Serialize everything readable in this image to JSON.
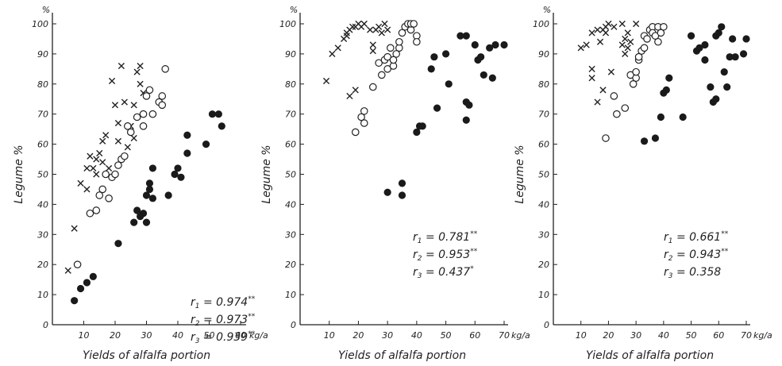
{
  "chart_data": [
    {
      "type": "scatter",
      "title": "",
      "xlabel": "Yields of alfalfa portion",
      "ylabel": "Legume %",
      "y_unit": "%",
      "x_unit": "kg/a",
      "xlim": [
        0,
        60
      ],
      "ylim": [
        0,
        100
      ],
      "x_ticks": [
        10,
        20,
        30,
        40,
        50,
        60
      ],
      "x_tick_labels": [
        "10",
        "20",
        "30",
        "40",
        "50",
        "60"
      ],
      "y_ticks": [
        0,
        10,
        20,
        30,
        40,
        50,
        60,
        70,
        80,
        90,
        100
      ],
      "y_tick_labels": [
        "0",
        "10",
        "20",
        "30",
        "40",
        "50",
        "60",
        "70",
        "80",
        "90",
        "100"
      ],
      "grid": false,
      "correlations": [
        {
          "symbol": "r",
          "sub": "1",
          "value": "0.974",
          "stars": "**"
        },
        {
          "symbol": "r",
          "sub": "2",
          "value": "0.973",
          "stars": "**"
        },
        {
          "symbol": "r",
          "sub": "3",
          "value": "0.939",
          "stars": "**"
        }
      ],
      "series": [
        {
          "marker": "cross",
          "points": [
            [
              5,
              18
            ],
            [
              7,
              32
            ],
            [
              9,
              47
            ],
            [
              11,
              45
            ],
            [
              11,
              52
            ],
            [
              12,
              56
            ],
            [
              13,
              52
            ],
            [
              14,
              50
            ],
            [
              14,
              55
            ],
            [
              15,
              57
            ],
            [
              16,
              54
            ],
            [
              16,
              61
            ],
            [
              17,
              63
            ],
            [
              18,
              52
            ],
            [
              19,
              81
            ],
            [
              20,
              73
            ],
            [
              21,
              61
            ],
            [
              21,
              67
            ],
            [
              22,
              86
            ],
            [
              23,
              74
            ],
            [
              24,
              59
            ],
            [
              25,
              66
            ],
            [
              26,
              62
            ],
            [
              26,
              73
            ],
            [
              27,
              84
            ],
            [
              28,
              86
            ],
            [
              28,
              80
            ],
            [
              29,
              77
            ]
          ]
        },
        {
          "marker": "circle",
          "points": [
            [
              8,
              20
            ],
            [
              12,
              37
            ],
            [
              14,
              38
            ],
            [
              15,
              43
            ],
            [
              16,
              45
            ],
            [
              17,
              50
            ],
            [
              18,
              42
            ],
            [
              19,
              49
            ],
            [
              20,
              50
            ],
            [
              21,
              53
            ],
            [
              22,
              55
            ],
            [
              23,
              56
            ],
            [
              24,
              66
            ],
            [
              25,
              64
            ],
            [
              27,
              69
            ],
            [
              29,
              66
            ],
            [
              29,
              70
            ],
            [
              30,
              76
            ],
            [
              31,
              78
            ],
            [
              32,
              70
            ],
            [
              34,
              74
            ],
            [
              35,
              76
            ],
            [
              35,
              73
            ],
            [
              36,
              85
            ]
          ]
        },
        {
          "marker": "filled",
          "points": [
            [
              7,
              8
            ],
            [
              9,
              12
            ],
            [
              11,
              14
            ],
            [
              13,
              16
            ],
            [
              21,
              27
            ],
            [
              26,
              34
            ],
            [
              27,
              38
            ],
            [
              28,
              36
            ],
            [
              29,
              37
            ],
            [
              30,
              34
            ],
            [
              30,
              43
            ],
            [
              31,
              45
            ],
            [
              31,
              47
            ],
            [
              32,
              52
            ],
            [
              32,
              42
            ],
            [
              37,
              43
            ],
            [
              39,
              50
            ],
            [
              40,
              52
            ],
            [
              41,
              49
            ],
            [
              43,
              57
            ],
            [
              43,
              63
            ],
            [
              49,
              60
            ],
            [
              51,
              70
            ],
            [
              53,
              70
            ],
            [
              54,
              66
            ]
          ]
        }
      ]
    },
    {
      "type": "scatter",
      "title": "",
      "xlabel": "Yields of alfalfa portion",
      "ylabel": "Legume %",
      "y_unit": "%",
      "x_unit": "kg/a",
      "xlim": [
        0,
        70
      ],
      "ylim": [
        0,
        100
      ],
      "x_ticks": [
        10,
        20,
        30,
        40,
        50,
        60,
        70
      ],
      "x_tick_labels": [
        "10",
        "20",
        "30",
        "40",
        "50",
        "60",
        "70"
      ],
      "y_ticks": [
        0,
        10,
        20,
        30,
        40,
        50,
        60,
        70,
        80,
        90,
        100
      ],
      "y_tick_labels": [
        "0",
        "10",
        "20",
        "30",
        "40",
        "50",
        "60",
        "70",
        "80",
        "90",
        "100"
      ],
      "grid": false,
      "correlations": [
        {
          "symbol": "r",
          "sub": "1",
          "value": "0.781",
          "stars": "**"
        },
        {
          "symbol": "r",
          "sub": "2",
          "value": "0.953",
          "stars": "**"
        },
        {
          "symbol": "r",
          "sub": "3",
          "value": "0.437",
          "stars": "*"
        }
      ],
      "series": [
        {
          "marker": "cross",
          "points": [
            [
              9,
              81
            ],
            [
              11,
              90
            ],
            [
              13,
              92
            ],
            [
              15,
              95
            ],
            [
              16,
              97
            ],
            [
              16,
              96
            ],
            [
              17,
              98
            ],
            [
              17,
              76
            ],
            [
              18,
              99
            ],
            [
              19,
              99
            ],
            [
              19,
              78
            ],
            [
              20,
              100
            ],
            [
              21,
              99
            ],
            [
              22,
              100
            ],
            [
              24,
              98
            ],
            [
              25,
              93
            ],
            [
              25,
              91
            ],
            [
              26,
              98
            ],
            [
              27,
              99
            ],
            [
              28,
              97
            ],
            [
              29,
              100
            ],
            [
              30,
              98
            ]
          ]
        },
        {
          "marker": "circle",
          "points": [
            [
              19,
              64
            ],
            [
              21,
              69
            ],
            [
              22,
              67
            ],
            [
              22,
              71
            ],
            [
              25,
              79
            ],
            [
              27,
              87
            ],
            [
              28,
              83
            ],
            [
              29,
              88
            ],
            [
              30,
              89
            ],
            [
              30,
              85
            ],
            [
              31,
              92
            ],
            [
              32,
              86
            ],
            [
              32,
              88
            ],
            [
              33,
              90
            ],
            [
              34,
              92
            ],
            [
              35,
              97
            ],
            [
              36,
              99
            ],
            [
              37,
              100
            ],
            [
              38,
              98
            ],
            [
              38,
              100
            ],
            [
              39,
              100
            ],
            [
              40,
              96
            ],
            [
              40,
              94
            ],
            [
              34,
              94
            ]
          ]
        },
        {
          "marker": "filled",
          "points": [
            [
              30,
              44
            ],
            [
              35,
              47
            ],
            [
              35,
              43
            ],
            [
              40,
              64
            ],
            [
              41,
              66
            ],
            [
              42,
              66
            ],
            [
              45,
              85
            ],
            [
              46,
              89
            ],
            [
              47,
              72
            ],
            [
              50,
              90
            ],
            [
              51,
              80
            ],
            [
              55,
              96
            ],
            [
              57,
              96
            ],
            [
              57,
              74
            ],
            [
              57,
              68
            ],
            [
              58,
              73
            ],
            [
              60,
              93
            ],
            [
              61,
              88
            ],
            [
              62,
              89
            ],
            [
              63,
              83
            ],
            [
              65,
              92
            ],
            [
              66,
              82
            ],
            [
              67,
              93
            ],
            [
              70,
              93
            ]
          ]
        }
      ]
    },
    {
      "type": "scatter",
      "title": "",
      "xlabel": "Yields of alfalfa portion",
      "ylabel": "Legume %",
      "y_unit": "%",
      "x_unit": "kg/a",
      "xlim": [
        0,
        70
      ],
      "ylim": [
        0,
        100
      ],
      "x_ticks": [
        10,
        20,
        30,
        40,
        50,
        60,
        70
      ],
      "x_tick_labels": [
        "10",
        "20",
        "30",
        "40",
        "50",
        "60",
        "70"
      ],
      "y_ticks": [
        0,
        10,
        20,
        30,
        40,
        50,
        60,
        70,
        80,
        90,
        100
      ],
      "y_tick_labels": [
        "0",
        "10",
        "20",
        "30",
        "40",
        "50",
        "60",
        "70",
        "80",
        "90",
        "100"
      ],
      "grid": false,
      "correlations": [
        {
          "symbol": "r",
          "sub": "1",
          "value": "0.661",
          "stars": "**"
        },
        {
          "symbol": "r",
          "sub": "2",
          "value": "0.943",
          "stars": "**"
        },
        {
          "symbol": "r",
          "sub": "3",
          "value": "0.358",
          "stars": ""
        }
      ],
      "series": [
        {
          "marker": "cross",
          "points": [
            [
              10,
              92
            ],
            [
              12,
              93
            ],
            [
              14,
              97
            ],
            [
              14,
              85
            ],
            [
              14,
              82
            ],
            [
              16,
              98
            ],
            [
              16,
              74
            ],
            [
              17,
              94
            ],
            [
              18,
              98
            ],
            [
              18,
              78
            ],
            [
              19,
              97
            ],
            [
              19,
              99
            ],
            [
              20,
              100
            ],
            [
              21,
              84
            ],
            [
              22,
              99
            ],
            [
              25,
              100
            ],
            [
              25,
              93
            ],
            [
              26,
              95
            ],
            [
              26,
              90
            ],
            [
              27,
              97
            ],
            [
              27,
              92
            ],
            [
              28,
              94
            ],
            [
              30,
              100
            ]
          ]
        },
        {
          "marker": "circle",
          "points": [
            [
              19,
              62
            ],
            [
              22,
              76
            ],
            [
              23,
              70
            ],
            [
              26,
              72
            ],
            [
              28,
              83
            ],
            [
              29,
              80
            ],
            [
              30,
              82
            ],
            [
              30,
              84
            ],
            [
              31,
              88
            ],
            [
              32,
              91
            ],
            [
              33,
              92
            ],
            [
              33,
              96
            ],
            [
              34,
              95
            ],
            [
              35,
              98
            ],
            [
              36,
              99
            ],
            [
              36,
              97
            ],
            [
              37,
              96
            ],
            [
              38,
              99
            ],
            [
              38,
              94
            ],
            [
              39,
              97
            ],
            [
              40,
              99
            ],
            [
              31,
              89
            ]
          ]
        },
        {
          "marker": "filled",
          "points": [
            [
              33,
              61
            ],
            [
              37,
              62
            ],
            [
              39,
              69
            ],
            [
              40,
              77
            ],
            [
              41,
              78
            ],
            [
              42,
              82
            ],
            [
              47,
              69
            ],
            [
              50,
              96
            ],
            [
              52,
              91
            ],
            [
              53,
              92
            ],
            [
              55,
              93
            ],
            [
              55,
              88
            ],
            [
              57,
              79
            ],
            [
              58,
              74
            ],
            [
              59,
              96
            ],
            [
              59,
              75
            ],
            [
              60,
              97
            ],
            [
              61,
              99
            ],
            [
              62,
              84
            ],
            [
              63,
              79
            ],
            [
              64,
              89
            ],
            [
              65,
              95
            ],
            [
              66,
              89
            ],
            [
              69,
              90
            ],
            [
              70,
              95
            ]
          ]
        }
      ]
    }
  ]
}
